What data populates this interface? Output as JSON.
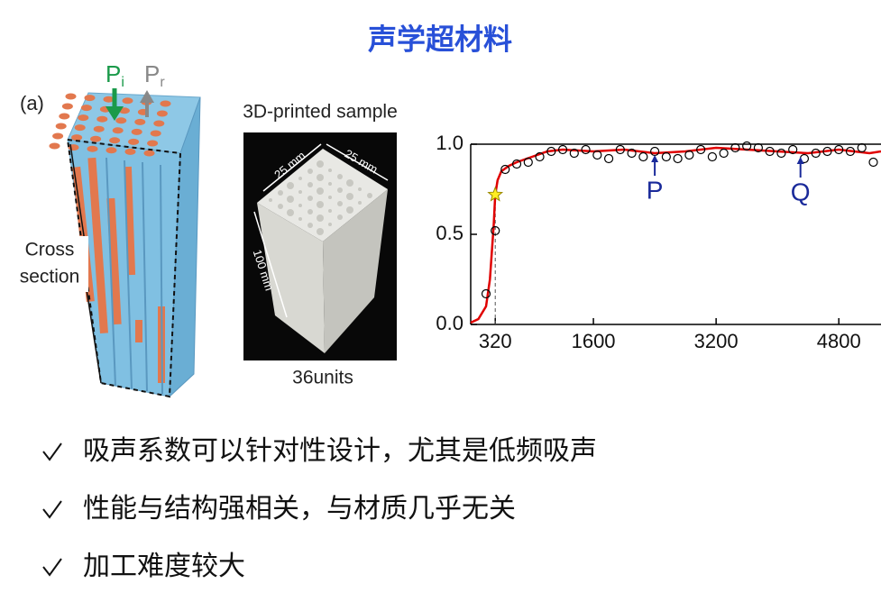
{
  "header": {
    "title": "声学超材料"
  },
  "figure": {
    "panel_label": "(a)",
    "incident_label": {
      "main": "P",
      "sub": "i"
    },
    "reflected_label": {
      "main": "P",
      "sub": "r"
    },
    "cross_section_label": [
      "Cross",
      "section"
    ],
    "sample_title": "3D-printed sample",
    "dim_labels": [
      "25 mm",
      "25 mm",
      "100 mm"
    ],
    "sample_caption": "36units"
  },
  "chart_data": {
    "type": "line",
    "xlim": [
      0,
      5350
    ],
    "ylim": [
      0,
      1.0
    ],
    "xticks": [
      320,
      1600,
      3200,
      4800
    ],
    "yticks": [
      {
        "value": 0,
        "label": "0.0"
      },
      {
        "value": 0.5,
        "label": "0.5"
      },
      {
        "value": 1.0,
        "label": "1.0"
      }
    ],
    "series": [
      {
        "style": "line",
        "color": "#e00000",
        "x": [
          0,
          100,
          200,
          250,
          300,
          320,
          350,
          400,
          500,
          600,
          800,
          1000,
          1200,
          1600,
          2000,
          2400,
          2800,
          3200,
          3600,
          4000,
          4400,
          4800,
          5000,
          5200,
          5350
        ],
        "values": [
          0.01,
          0.03,
          0.1,
          0.25,
          0.55,
          0.72,
          0.8,
          0.85,
          0.88,
          0.9,
          0.93,
          0.96,
          0.97,
          0.96,
          0.97,
          0.95,
          0.96,
          0.98,
          0.97,
          0.96,
          0.95,
          0.97,
          0.96,
          0.95,
          0.96
        ]
      },
      {
        "style": "markers",
        "color": "#000000",
        "x": [
          200,
          320,
          450,
          600,
          750,
          900,
          1050,
          1200,
          1350,
          1500,
          1650,
          1800,
          1950,
          2100,
          2250,
          2400,
          2550,
          2700,
          2850,
          3000,
          3150,
          3300,
          3450,
          3600,
          3750,
          3900,
          4050,
          4200,
          4350,
          4500,
          4650,
          4800,
          4950,
          5100,
          5250
        ],
        "values": [
          0.17,
          0.52,
          0.86,
          0.89,
          0.9,
          0.93,
          0.96,
          0.97,
          0.95,
          0.97,
          0.94,
          0.92,
          0.97,
          0.95,
          0.93,
          0.96,
          0.93,
          0.92,
          0.94,
          0.97,
          0.93,
          0.95,
          0.98,
          0.99,
          0.98,
          0.96,
          0.95,
          0.97,
          0.92,
          0.95,
          0.96,
          0.97,
          0.96,
          0.98,
          0.9
        ]
      }
    ],
    "highlight": {
      "x": 320,
      "y": 0.72
    },
    "annotations": [
      {
        "text": "P",
        "x": 2400,
        "y": 0.95
      },
      {
        "text": "Q",
        "x": 4300,
        "y": 0.94
      }
    ]
  },
  "bullets": [
    "吸声系数可以针对性设计，尤其是低频吸声",
    "性能与结构强相关，与材质几乎无关",
    "加工难度较大"
  ]
}
